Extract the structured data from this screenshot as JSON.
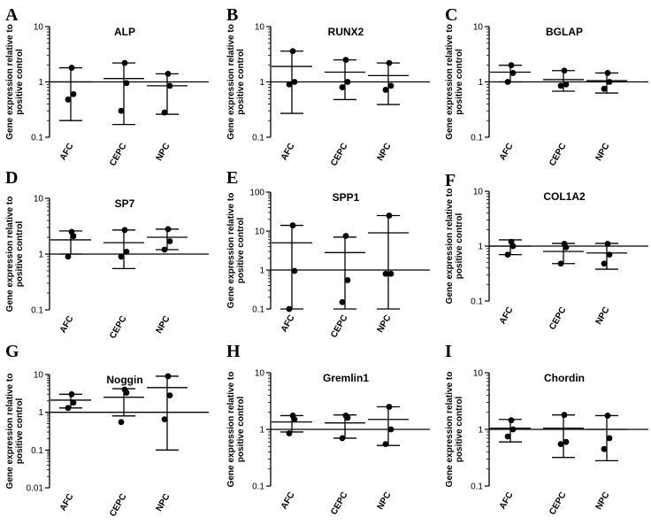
{
  "chart_data": [
    {
      "letter": "A",
      "title": "ALP",
      "type": "scatter",
      "yscale": "log",
      "ylim": [
        0.1,
        10
      ],
      "ticks": [
        "0.1",
        "1",
        "10"
      ],
      "ylabel": [
        "Gene expression relative to",
        "positive control"
      ],
      "baseline": 1,
      "categories": [
        "AFC",
        "CEPC",
        "NPC"
      ],
      "series": [
        {
          "mean": 1.0,
          "low": 0.2,
          "high": 1.8,
          "points": [
            1.8,
            0.6,
            0.48
          ]
        },
        {
          "mean": 1.15,
          "low": 0.17,
          "high": 2.2,
          "points": [
            2.2,
            0.95,
            0.3
          ]
        },
        {
          "mean": 0.85,
          "low": 0.26,
          "high": 1.4,
          "points": [
            1.4,
            0.85,
            0.28
          ]
        }
      ]
    },
    {
      "letter": "B",
      "title": "RUNX2",
      "type": "scatter",
      "yscale": "log",
      "ylim": [
        0.1,
        10
      ],
      "ticks": [
        "0.1",
        "1",
        "10"
      ],
      "ylabel": [
        "Gene expression relative to",
        "positive control"
      ],
      "baseline": 1,
      "categories": [
        "AFC",
        "CEPC",
        "NPC"
      ],
      "series": [
        {
          "mean": 1.9,
          "low": 0.27,
          "high": 3.6,
          "points": [
            3.6,
            1.0,
            0.9
          ]
        },
        {
          "mean": 1.5,
          "low": 0.48,
          "high": 2.5,
          "points": [
            2.5,
            1.0,
            0.8
          ]
        },
        {
          "mean": 1.3,
          "low": 0.39,
          "high": 2.2,
          "points": [
            2.2,
            0.85,
            0.72
          ]
        }
      ]
    },
    {
      "letter": "C",
      "title": "BGLAP",
      "type": "scatter",
      "yscale": "log",
      "ylim": [
        0.1,
        10
      ],
      "ticks": [
        "0.1",
        "1",
        "10"
      ],
      "ylabel": [
        "Gene expression relative to",
        "positive control"
      ],
      "baseline": 1,
      "categories": [
        "AFC",
        "CEPC",
        "NPC"
      ],
      "series": [
        {
          "mean": 1.5,
          "low": 1.0,
          "high": 2.0,
          "points": [
            2.0,
            1.45,
            1.0
          ]
        },
        {
          "mean": 1.1,
          "low": 0.68,
          "high": 1.6,
          "points": [
            1.6,
            0.9,
            0.85
          ]
        },
        {
          "mean": 1.05,
          "low": 0.63,
          "high": 1.45,
          "points": [
            1.45,
            1.0,
            0.75
          ]
        }
      ]
    },
    {
      "letter": "D",
      "title": "SP7",
      "type": "scatter",
      "yscale": "log",
      "ylim": [
        0.1,
        10
      ],
      "ticks": [
        "0.1",
        "1",
        "10"
      ],
      "ylabel": [
        "Gene expression relative to",
        "positive control"
      ],
      "baseline": 1,
      "categories": [
        "AFC",
        "CEPC",
        "NPC"
      ],
      "series": [
        {
          "mean": 1.8,
          "low": 1.0,
          "high": 2.6,
          "points": [
            2.5,
            2.1,
            0.9
          ]
        },
        {
          "mean": 1.6,
          "low": 0.55,
          "high": 2.7,
          "points": [
            2.7,
            1.1,
            0.9
          ]
        },
        {
          "mean": 2.0,
          "low": 1.2,
          "high": 2.8,
          "points": [
            2.8,
            1.7,
            1.2
          ]
        }
      ]
    },
    {
      "letter": "E",
      "title": "SPP1",
      "type": "scatter",
      "yscale": "log",
      "ylim": [
        0.1,
        100
      ],
      "ticks": [
        "0.1",
        "1",
        "10",
        "100"
      ],
      "ylabel": [
        "Gene expression relative to",
        "positive control"
      ],
      "baseline": 1,
      "categories": [
        "AFC",
        "CEPC",
        "NPC"
      ],
      "series": [
        {
          "mean": 5.0,
          "low": 0.1,
          "high": 14,
          "points": [
            14,
            0.95,
            0.1
          ]
        },
        {
          "mean": 2.8,
          "low": 0.1,
          "high": 7.0,
          "points": [
            7.5,
            0.55,
            0.15
          ]
        },
        {
          "mean": 9.0,
          "low": 0.1,
          "high": 25,
          "points": [
            25,
            0.8,
            0.8
          ]
        }
      ]
    },
    {
      "letter": "F",
      "title": "COL1A2",
      "type": "scatter",
      "yscale": "log",
      "ylim": [
        0.1,
        10
      ],
      "ticks": [
        "0.1",
        "1",
        "10"
      ],
      "ylabel": [
        "Gene expression relative to",
        "positive control"
      ],
      "baseline": 1,
      "categories": [
        "AFC",
        "CEPC",
        "NPC"
      ],
      "series": [
        {
          "mean": 1.0,
          "low": 0.7,
          "high": 1.3,
          "points": [
            1.2,
            1.0,
            0.7
          ]
        },
        {
          "mean": 0.8,
          "low": 0.48,
          "high": 1.12,
          "points": [
            1.1,
            0.95,
            0.48
          ]
        },
        {
          "mean": 0.75,
          "low": 0.38,
          "high": 1.12,
          "points": [
            1.1,
            0.7,
            0.48
          ]
        }
      ]
    },
    {
      "letter": "G",
      "title": "Noggin",
      "type": "scatter",
      "yscale": "log",
      "ylim": [
        0.01,
        10
      ],
      "ticks": [
        "0.01",
        "0.1",
        "1",
        "10"
      ],
      "ylabel": [
        "Gene expression relative to",
        "positive control"
      ],
      "baseline": 1,
      "categories": [
        "AFC",
        "CEPC",
        "NPC"
      ],
      "series": [
        {
          "mean": 2.1,
          "low": 1.3,
          "high": 3.0,
          "points": [
            3.0,
            1.8,
            1.3
          ]
        },
        {
          "mean": 2.5,
          "low": 0.8,
          "high": 4.2,
          "points": [
            4.0,
            3.3,
            0.55
          ]
        },
        {
          "mean": 4.5,
          "low": 0.1,
          "high": 9.0,
          "points": [
            9.0,
            2.8,
            0.65
          ]
        }
      ]
    },
    {
      "letter": "H",
      "title": "Gremlin1",
      "type": "scatter",
      "yscale": "log",
      "ylim": [
        0.1,
        10
      ],
      "ticks": [
        "0.1",
        "1",
        "10"
      ],
      "ylabel": [
        "Gene expression relative to",
        "positive control"
      ],
      "baseline": 1,
      "categories": [
        "AFC",
        "CEPC",
        "NPC"
      ],
      "series": [
        {
          "mean": 1.35,
          "low": 0.9,
          "high": 1.75,
          "points": [
            1.75,
            1.5,
            0.85
          ]
        },
        {
          "mean": 1.3,
          "low": 0.7,
          "high": 1.8,
          "points": [
            1.75,
            1.6,
            0.7
          ]
        },
        {
          "mean": 1.5,
          "low": 0.52,
          "high": 2.5,
          "points": [
            2.5,
            1.0,
            0.55
          ]
        }
      ]
    },
    {
      "letter": "I",
      "title": "Chordin",
      "type": "scatter",
      "yscale": "log",
      "ylim": [
        0.1,
        10
      ],
      "ticks": [
        "0.1",
        "1",
        "10"
      ],
      "ylabel": [
        "Gene expression relative to",
        "positive control"
      ],
      "baseline": 1,
      "categories": [
        "AFC",
        "CEPC",
        "NPC"
      ],
      "series": [
        {
          "mean": 1.05,
          "low": 0.6,
          "high": 1.5,
          "points": [
            1.45,
            1.0,
            0.75
          ]
        },
        {
          "mean": 1.05,
          "low": 0.32,
          "high": 1.8,
          "points": [
            1.8,
            0.6,
            0.55
          ]
        },
        {
          "mean": 1.0,
          "low": 0.28,
          "high": 1.75,
          "points": [
            1.75,
            0.7,
            0.45
          ]
        }
      ]
    }
  ]
}
